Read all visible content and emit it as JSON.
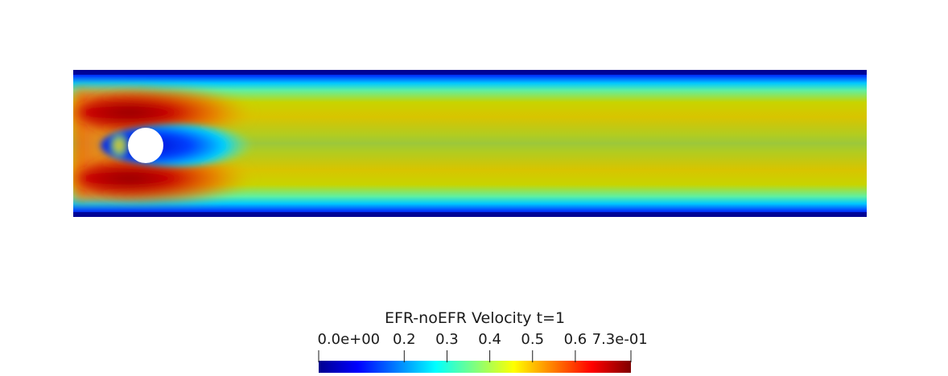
{
  "legend": {
    "title": "EFR-noEFR Velocity t=1",
    "range": [
      0.0,
      0.73
    ],
    "ticks": [
      {
        "value": 0.0,
        "label": "0.0e+00"
      },
      {
        "value": 0.2,
        "label": "0.2"
      },
      {
        "value": 0.3,
        "label": "0.3"
      },
      {
        "value": 0.4,
        "label": "0.4"
      },
      {
        "value": 0.5,
        "label": "0.5"
      },
      {
        "value": 0.6,
        "label": "0.6"
      },
      {
        "value": 0.73,
        "label": "7.3e-01"
      }
    ],
    "colormap": [
      "#00008f",
      "#0000ff",
      "#00ffff",
      "#7fff7f",
      "#ffff00",
      "#ff7f00",
      "#ff0000",
      "#7f0000"
    ]
  },
  "field": {
    "obstacle": "cylinder",
    "colors": {
      "wall": "#00008f",
      "inlet": "#ee6a10",
      "core": "#9cc83a",
      "band": "#d6c400",
      "shear": "#b80000",
      "wake": "#0010d0",
      "cylinder": "#ffffff"
    }
  }
}
